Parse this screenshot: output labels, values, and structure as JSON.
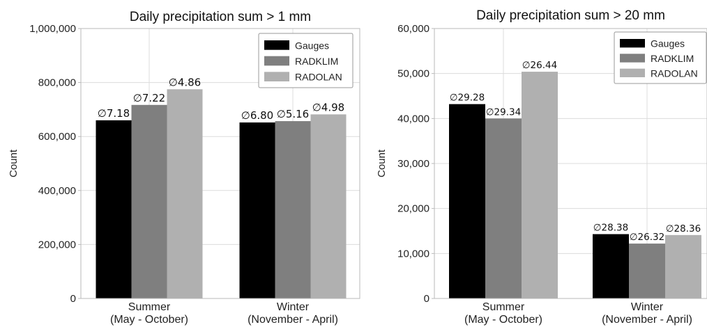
{
  "colors": {
    "background": "#ffffff",
    "grid": "#dcdcdc",
    "axis": "#b8b8b8",
    "text": "#222222",
    "legend_border": "#999999"
  },
  "chart_data": [
    {
      "type": "bar",
      "title": "Daily precipitation sum > 1 mm",
      "ylabel": "Count",
      "xlabel": "",
      "ylim": [
        0,
        1000000
      ],
      "yticks": [
        {
          "value": 0,
          "label": "0"
        },
        {
          "value": 200000,
          "label": "200,000"
        },
        {
          "value": 400000,
          "label": "400,000"
        },
        {
          "value": 600000,
          "label": "600,000"
        },
        {
          "value": 800000,
          "label": "800,000"
        },
        {
          "value": 1000000,
          "label": "1,000,000"
        }
      ],
      "categories": [
        {
          "line1": "Summer",
          "line2": "(May - October)"
        },
        {
          "line1": "Winter",
          "line2": "(November - April)"
        }
      ],
      "series": [
        {
          "name": "Gauges",
          "color": "#000000",
          "values": [
            660000,
            652000
          ],
          "labels": [
            "∅7.18",
            "∅6.80"
          ]
        },
        {
          "name": "RADKLIM",
          "color": "#7f7f7f",
          "values": [
            717000,
            657000
          ],
          "labels": [
            "∅7.22",
            "∅5.16"
          ]
        },
        {
          "name": "RADOLAN",
          "color": "#b0b0b0",
          "values": [
            775000,
            682000
          ],
          "labels": [
            "∅4.86",
            "∅4.98"
          ]
        }
      ],
      "grid": true,
      "legend": "top-right"
    },
    {
      "type": "bar",
      "title": "Daily precipitation sum > 20 mm",
      "ylabel": "Count",
      "xlabel": "",
      "ylim": [
        0,
        60000
      ],
      "yticks": [
        {
          "value": 0,
          "label": "0"
        },
        {
          "value": 10000,
          "label": "10,000"
        },
        {
          "value": 20000,
          "label": "20,000"
        },
        {
          "value": 30000,
          "label": "30,000"
        },
        {
          "value": 40000,
          "label": "40,000"
        },
        {
          "value": 50000,
          "label": "50,000"
        },
        {
          "value": 60000,
          "label": "60,000"
        }
      ],
      "categories": [
        {
          "line1": "Summer",
          "line2": "(May - October)"
        },
        {
          "line1": "Winter",
          "line2": "(November - April)"
        }
      ],
      "series": [
        {
          "name": "Gauges",
          "color": "#000000",
          "values": [
            43200,
            14300
          ],
          "labels": [
            "∅29.28",
            "∅28.38"
          ]
        },
        {
          "name": "RADKLIM",
          "color": "#7f7f7f",
          "values": [
            40000,
            12200
          ],
          "labels": [
            "∅29.34",
            "∅26.32"
          ]
        },
        {
          "name": "RADOLAN",
          "color": "#b0b0b0",
          "values": [
            50400,
            14100
          ],
          "labels": [
            "∅26.44",
            "∅28.36"
          ]
        }
      ],
      "grid": true,
      "legend": "top-right"
    }
  ]
}
